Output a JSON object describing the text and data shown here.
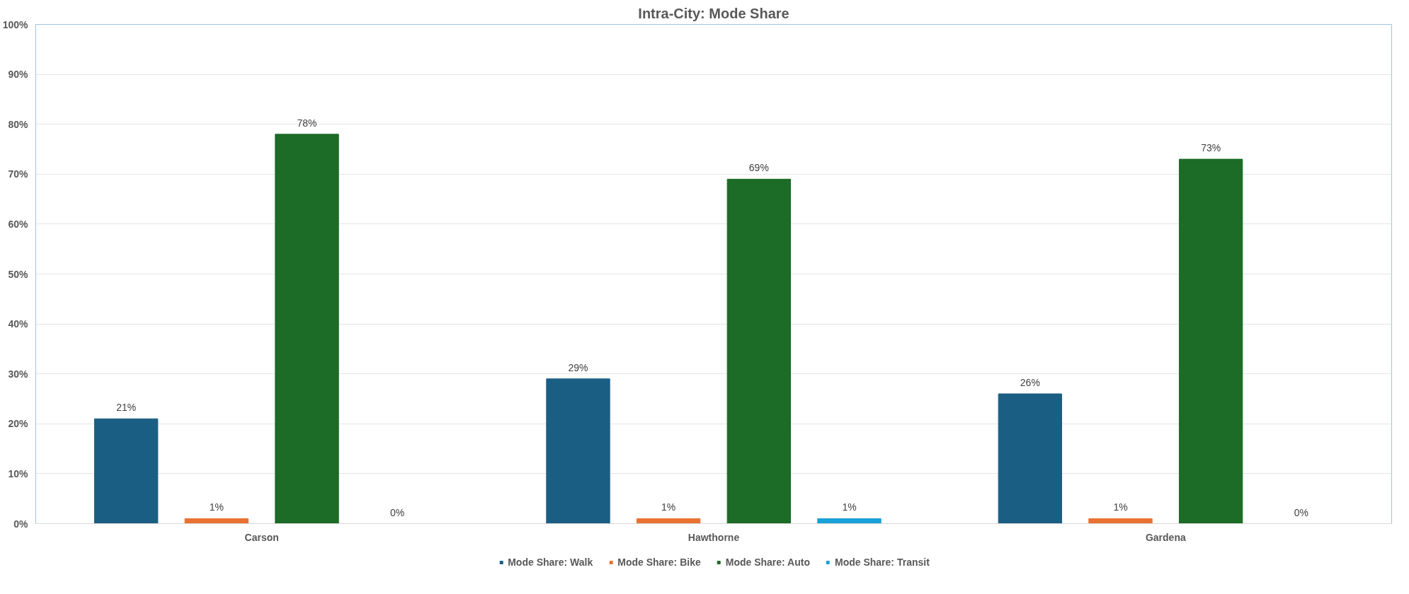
{
  "chart_data": {
    "type": "bar",
    "title": "Intra-City: Mode Share",
    "categories": [
      "Carson",
      "Hawthorne",
      "Gardena"
    ],
    "series": [
      {
        "name": "Mode Share: Walk",
        "color": "#1b5e84",
        "values": [
          21,
          29,
          26
        ],
        "value_labels": [
          "21%",
          "29%",
          "26%"
        ]
      },
      {
        "name": "Mode Share: Bike",
        "color": "#e97132",
        "values": [
          1,
          1,
          1
        ],
        "value_labels": [
          "1%",
          "1%",
          "1%"
        ]
      },
      {
        "name": "Mode Share: Auto",
        "color": "#1c6b26",
        "values": [
          78,
          69,
          73
        ],
        "value_labels": [
          "78%",
          "69%",
          "73%"
        ]
      },
      {
        "name": "Mode Share: Transit",
        "color": "#1aa0d8",
        "values": [
          0,
          1,
          0
        ],
        "value_labels": [
          "0%",
          "1%",
          "0%"
        ]
      }
    ],
    "ylim": [
      0,
      100
    ],
    "yticks": [
      {
        "value": 0,
        "label": "0%"
      },
      {
        "value": 10,
        "label": "10%"
      },
      {
        "value": 20,
        "label": "20%"
      },
      {
        "value": 30,
        "label": "30%"
      },
      {
        "value": 40,
        "label": "40%"
      },
      {
        "value": 50,
        "label": "50%"
      },
      {
        "value": 60,
        "label": "60%"
      },
      {
        "value": 70,
        "label": "70%"
      },
      {
        "value": 80,
        "label": "80%"
      },
      {
        "value": 90,
        "label": "90%"
      },
      {
        "value": 100,
        "label": "100%"
      }
    ],
    "grid": "y",
    "legend": "bottom"
  }
}
